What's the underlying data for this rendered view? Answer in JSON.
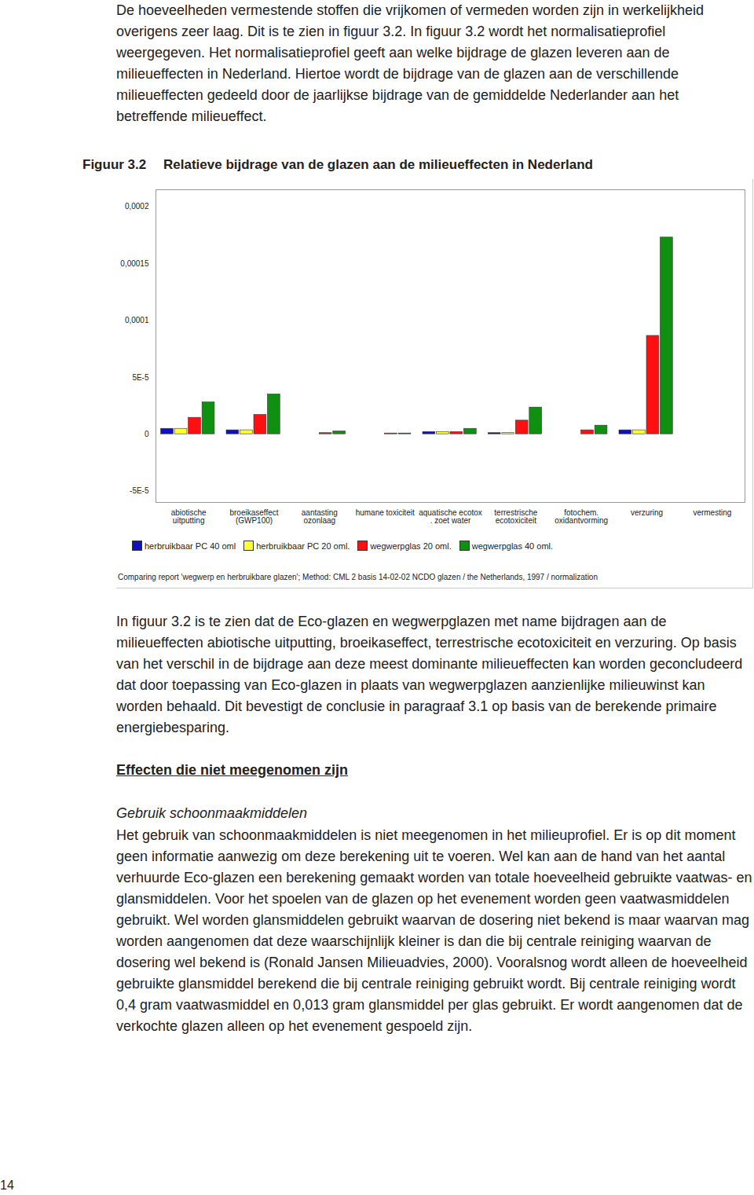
{
  "document": {
    "paragraph_top": "De hoeveelheden vermestende stoffen die vrijkomen of vermeden worden zijn in werkelijkheid overigens zeer laag. Dit is te zien in figuur 3.2. In figuur 3.2 wordt het normalisatieprofiel weergegeven. Het normalisatieprofiel geeft aan welke bijdrage de glazen leveren aan de milieueffecten in Nederland. Hiertoe wordt de bijdrage van de glazen aan de verschillende milieueffecten gedeeld door de jaarlijkse bijdrage van de gemiddelde Nederlander aan het betreffende milieueffect.",
    "figure_label": "Figuur 3.2",
    "figure_title": "Relatieve bijdrage van de glazen aan de milieueffecten in Nederland",
    "paragraph_after_figure": "In figuur 3.2 is te zien dat de Eco-glazen en wegwerpglazen met name bijdragen aan de milieueffecten abiotische uitputting, broeikaseffect, terrestrische ecotoxiciteit en verzuring. Op basis van het verschil in de bijdrage aan deze meest dominante milieueffecten kan worden geconcludeerd dat door toepassing van Eco-glazen in plaats van wegwerpglazen aanzienlijke milieuwinst kan worden behaald. Dit bevestigt de conclusie in paragraaf 3.1 op basis van de berekende primaire energiebesparing.",
    "heading": "Effecten die niet meegenomen zijn",
    "subheading": "Gebruik schoonmaakmiddelen",
    "paragraph_bottom": "Het gebruik van schoonmaakmiddelen is niet meegenomen in het milieuprofiel. Er is op dit moment geen informatie aanwezig om deze berekening uit te voeren. Wel kan aan de hand van het aantal verhuurde Eco-glazen een berekening gemaakt worden van totale hoeveelheid gebruikte vaatwas- en glansmiddelen. Voor het spoelen van de glazen op het evenement worden geen vaatwasmiddelen gebruikt. Wel worden glansmiddelen gebruikt waarvan de dosering niet bekend is maar waarvan mag worden aangenomen dat deze waarschijnlijk kleiner is dan die bij centrale reiniging waarvan de dosering wel bekend is (Ronald Jansen Milieuadvies, 2000). Vooralsnog wordt alleen de hoeveelheid gebruikte glansmiddel berekend die bij centrale reiniging gebruikt wordt. Bij centrale reiniging wordt 0,4 gram vaatwasmiddel en 0,013 gram glansmiddel per glas gebruikt. Er wordt aangenomen dat de verkochte glazen alleen op het evenement gespoeld zijn.",
    "page_number": "14"
  },
  "chart_data": {
    "type": "bar",
    "categories": [
      "abiotische\nuitputting",
      "broeikaseffect\n(GWP100)",
      "aantasting\nozonlaag",
      "humane toxiciteit",
      "aquatische ecotox\n. zoet water",
      "terrestrische\necotoxiciteit",
      "fotochem.\noxidantvorming",
      "verzuring",
      "vermesting"
    ],
    "series": [
      {
        "name": "herbruikbaar PC 40 oml",
        "color": "#1010c0",
        "values": [
          4.8e-06,
          3.5e-06,
          0,
          0,
          2e-06,
          1e-06,
          0,
          3.5e-06,
          0
        ]
      },
      {
        "name": "herbruikbaar PC 20 oml.",
        "color": "#ffff30",
        "values": [
          4.8e-06,
          3.5e-06,
          0,
          0,
          2e-06,
          1e-06,
          0,
          3.5e-06,
          0
        ]
      },
      {
        "name": "wegwerpglas 20 oml.",
        "color": "#ff1010",
        "values": [
          1.45e-05,
          1.7e-05,
          1e-06,
          7e-07,
          2e-06,
          1.2e-05,
          3.5e-06,
          8.65e-05,
          0
        ]
      },
      {
        "name": "wegwerpglas 40 oml.",
        "color": "#109010",
        "values": [
          2.8e-05,
          3.5e-05,
          2.5e-06,
          7e-07,
          4.8e-06,
          2.35e-05,
          7.6e-06,
          0.000173,
          0
        ]
      }
    ],
    "ylim": [
      -6e-05,
      0.000215
    ],
    "yticks": [
      {
        "value": -5e-05,
        "label": "-5E-5"
      },
      0,
      {
        "value": 5e-05,
        "label": "5E-5"
      },
      {
        "value": 0.0001,
        "label": "0,0001"
      },
      {
        "value": 0.00015,
        "label": "0,00015"
      },
      {
        "value": 0.0002,
        "label": "0,0002"
      }
    ],
    "grid": false,
    "legend": "bottom",
    "source": "Comparing report 'wegwerp en herbruikbare glazen'; Method: CML 2 basis 14-02-02 NCDO glazen / the Netherlands, 1997 / normalization"
  }
}
